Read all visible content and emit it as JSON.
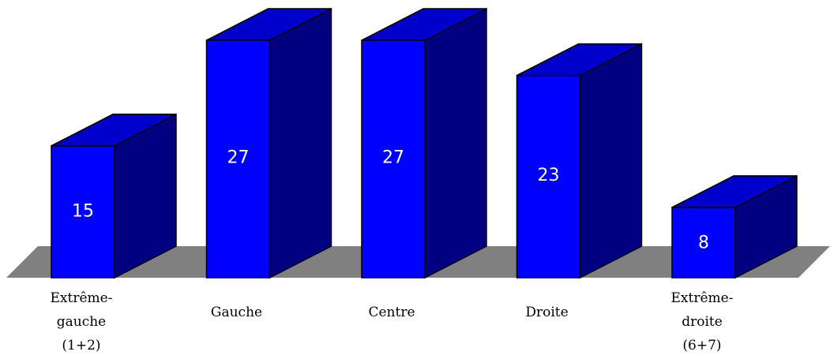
{
  "chart_data": {
    "type": "bar",
    "title": "",
    "xlabel": "",
    "ylabel": "",
    "categories": [
      [
        "Extrême-",
        "gauche",
        "(1+2)"
      ],
      [
        "Gauche"
      ],
      [
        "Centre"
      ],
      [
        "Droite"
      ],
      [
        "Extrême-",
        "droite",
        "(6+7)"
      ]
    ],
    "values": [
      15,
      27,
      27,
      23,
      8
    ],
    "ylim": [
      0,
      27
    ],
    "grid": false,
    "legend": "none",
    "style": "3d",
    "colors": {
      "bar_front": "#0000ff",
      "bar_side": "#000080",
      "bar_top": "#0000cc",
      "floor": "#808080",
      "value_text": "#ffffff",
      "outline": "#000000"
    }
  }
}
